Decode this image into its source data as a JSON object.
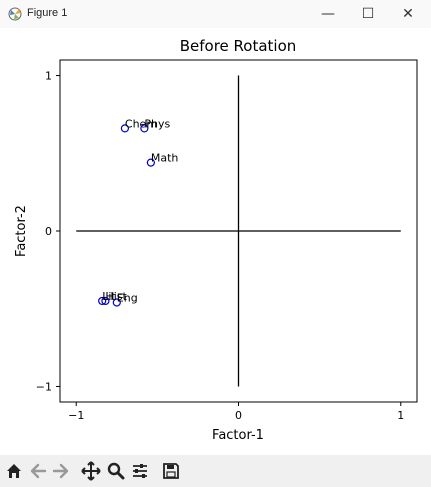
{
  "window": {
    "title": "Figure 1",
    "controls": {
      "minimize": "—",
      "maximize": "☐",
      "close": "✕"
    }
  },
  "toolbar": {
    "buttons": [
      "home-icon",
      "back-arrow-icon",
      "forward-arrow-icon",
      "pan-icon",
      "zoom-icon",
      "configure-subplots-icon",
      "save-icon"
    ]
  },
  "chart_data": {
    "type": "scatter",
    "title": "Before Rotation",
    "xlabel": "Factor-1",
    "ylabel": "Factor-2",
    "xlim": [
      -1.1,
      1.1
    ],
    "ylim": [
      -1.1,
      1.1
    ],
    "xticks": [
      -1,
      0,
      1
    ],
    "xtick_labels": [
      "−1",
      "0",
      "1"
    ],
    "yticks": [
      -1,
      0,
      1
    ],
    "ytick_labels": [
      "−1",
      "0",
      "1"
    ],
    "grid": false,
    "marker": "hollow circle",
    "marker_color": "#0000cc",
    "reference_lines": [
      {
        "x": [
          -1,
          1
        ],
        "y": [
          0,
          0
        ]
      },
      {
        "x": [
          0,
          0
        ],
        "y": [
          -1,
          1
        ]
      }
    ],
    "points": [
      {
        "label": "Chem",
        "x": -0.7,
        "y": 0.66
      },
      {
        "label": "Phys",
        "x": -0.58,
        "y": 0.66
      },
      {
        "label": "Math",
        "x": -0.54,
        "y": 0.44
      },
      {
        "label": "Hist",
        "x": -0.82,
        "y": -0.45
      },
      {
        "label": "Eng",
        "x": -0.75,
        "y": -0.46
      },
      {
        "label": "Lit",
        "x": -0.84,
        "y": -0.45
      }
    ]
  }
}
